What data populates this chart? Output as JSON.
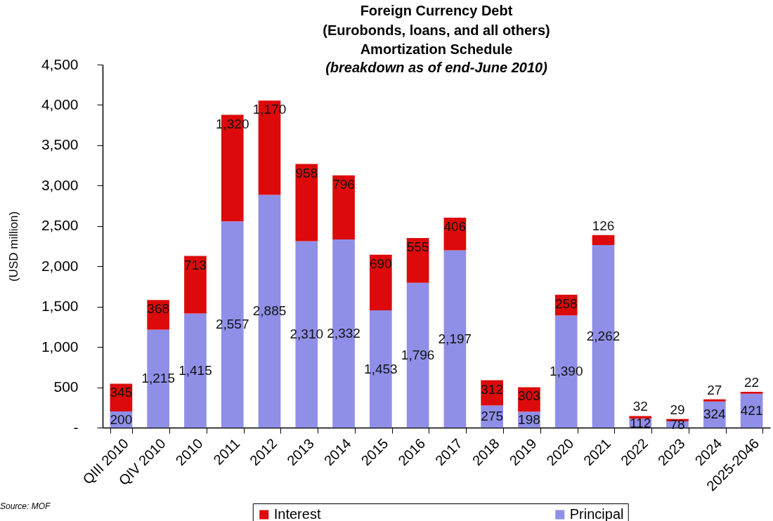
{
  "chart_data": {
    "type": "bar",
    "title": "Foreign Currency Debt\n(Eurobonds, loans, and all others)\nAmortization Schedule",
    "subtitle": "(breakdown as of end-June 2010)",
    "ylabel": "(USD million)",
    "annotations": [
      "Source: MOF"
    ],
    "categories": [
      "QIII 2010",
      "QIV 2010",
      "2010",
      "2011",
      "2012",
      "2013",
      "2014",
      "2015",
      "2016",
      "2017",
      "2018",
      "2019",
      "2020",
      "2021",
      "2022",
      "2023",
      "2024",
      "2025-2046"
    ],
    "series": [
      {
        "name": "Principal",
        "color": "#8f8fe8",
        "values": [
          200,
          1215,
          1415,
          2557,
          2885,
          2310,
          2332,
          1453,
          1796,
          2197,
          275,
          198,
          1390,
          2262,
          112,
          78,
          324,
          421
        ],
        "value_labels": [
          "200",
          "1,215",
          "1,415",
          "2,557",
          "2,885",
          "2,310",
          "2,332",
          "1,453",
          "1,796",
          "2,197",
          "275",
          "198",
          "1,390",
          "2,262",
          "112",
          "78",
          "324",
          "421"
        ]
      },
      {
        "name": "Interest",
        "color": "#dc0a0a",
        "values": [
          345,
          368,
          713,
          1320,
          1170,
          958,
          796,
          690,
          555,
          406,
          312,
          303,
          258,
          126,
          32,
          29,
          27,
          22
        ],
        "value_labels": [
          "345",
          "368",
          "713",
          "1,320",
          "1,170",
          "958",
          "796",
          "690",
          "555",
          "406",
          "312",
          "303",
          "258",
          "126",
          "32",
          "29",
          "27",
          "22"
        ]
      }
    ],
    "stacked": true,
    "legend": "bottom",
    "ylim": [
      0,
      4500
    ],
    "yticks": [
      {
        "value": 0,
        "label": "-"
      },
      500,
      {
        "value": 1000,
        "label": "1,000"
      },
      {
        "value": 1500,
        "label": "1,500"
      },
      {
        "value": 2000,
        "label": "2,000"
      },
      {
        "value": 2500,
        "label": "2,500"
      },
      {
        "value": 3000,
        "label": "3,000"
      },
      {
        "value": 3500,
        "label": "3,500"
      },
      {
        "value": 4000,
        "label": "4,000"
      },
      {
        "value": 4500,
        "label": "4,500"
      }
    ]
  }
}
